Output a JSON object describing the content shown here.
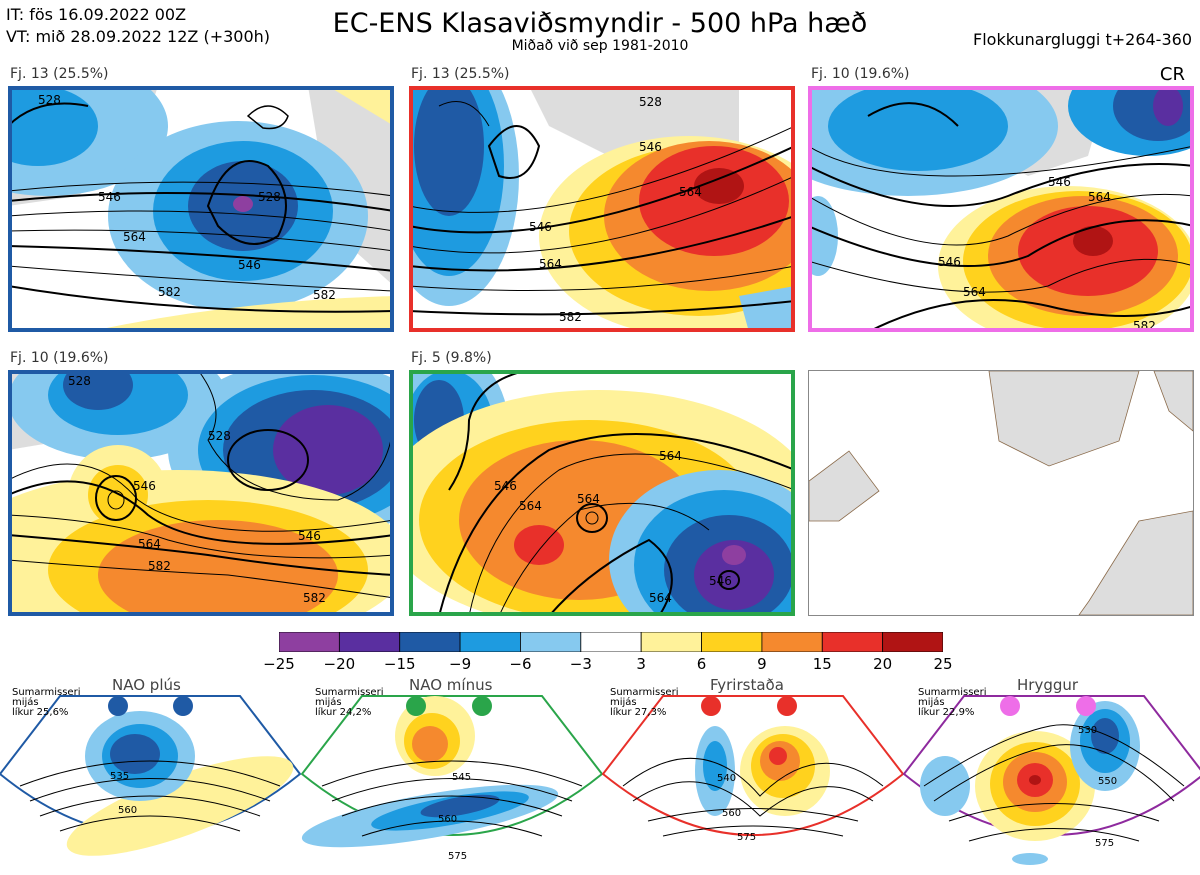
{
  "header": {
    "it_line": "IT: fös 16.09.2022 00Z",
    "vt_line": "VT: mið 28.09.2022 12Z  (+300h)",
    "title": "EC-ENS Klasaviðsmyndir - 500 hPa hæð",
    "subtitle": "Miðað við sep 1981-2010",
    "window": "Flokkunargluggi t+264-360",
    "cr": "CR"
  },
  "panels": [
    {
      "label": "Fj. 13 (25.5%)",
      "frame": "#1f5aa5",
      "contours": [
        "528",
        "528",
        "546",
        "564",
        "546",
        "582",
        "582"
      ]
    },
    {
      "label": "Fj. 13 (25.5%)",
      "frame": "#e8302a",
      "contours": [
        "528",
        "546",
        "546",
        "564",
        "564",
        "582"
      ]
    },
    {
      "label": "Fj. 10 (19.6%)",
      "frame": "#ee6ee8",
      "contours": [
        "546",
        "546",
        "564",
        "564",
        "582"
      ]
    },
    {
      "label": "Fj. 10 (19.6%)",
      "frame": "#1f5aa5",
      "contours": [
        "528",
        "528",
        "546",
        "546",
        "564",
        "582",
        "582"
      ]
    },
    {
      "label": "Fj. 5 (9.8%)",
      "frame": "#2aa54a",
      "contours": [
        "564",
        "546",
        "564",
        "564",
        "546",
        "564"
      ]
    }
  ],
  "colorbar": {
    "ticks": [
      "−25",
      "−20",
      "−15",
      "−9",
      "−6",
      "−3",
      "3",
      "6",
      "9",
      "15",
      "20",
      "25"
    ],
    "colors": [
      "#8e3fa0",
      "#5a2fa0",
      "#1f5aa5",
      "#1e9be0",
      "#86c9ef",
      "#ffffff",
      "#fff29a",
      "#ffd21e",
      "#f5892e",
      "#e8302a",
      "#b01414"
    ]
  },
  "regimes": [
    {
      "title": "NAO plús",
      "note": [
        "Sumarmisseri",
        "mijás",
        "líkur 25,6%"
      ],
      "color": "#1f5aa5",
      "contours": [
        "535",
        "560"
      ]
    },
    {
      "title": "NAO mínus",
      "note": [
        "Sumarmisseri",
        "mijás",
        "líkur 24,2%"
      ],
      "color": "#2aa54a",
      "contours": [
        "545",
        "560",
        "575"
      ]
    },
    {
      "title": "Fyrirstaða",
      "note": [
        "Sumarmisseri",
        "mijás",
        "líkur 27,3%"
      ],
      "color": "#e8302a",
      "contours": [
        "540",
        "560",
        "575"
      ]
    },
    {
      "title": "Hryggur",
      "note": [
        "Sumarmisseri",
        "mijás",
        "líkur 22,9%"
      ],
      "color": "#ee6ee8",
      "contours": [
        "530",
        "550",
        "575"
      ]
    }
  ],
  "chart_data": {
    "type": "heatmap",
    "title": "EC-ENS Klasaviðsmyndir - 500 hPa hæð",
    "colorbar_levels": [
      -25,
      -20,
      -15,
      -9,
      -6,
      -3,
      3,
      6,
      9,
      15,
      20,
      25
    ],
    "clusters": [
      {
        "name": "Fj. 13",
        "share_pct": 25.5
      },
      {
        "name": "Fj. 13",
        "share_pct": 25.5
      },
      {
        "name": "Fj. 10",
        "share_pct": 19.6
      },
      {
        "name": "Fj. 10",
        "share_pct": 19.6
      },
      {
        "name": "Fj. 5",
        "share_pct": 9.8
      }
    ],
    "regime_probability_pct": [
      {
        "name": "NAO plús",
        "value": 25.6
      },
      {
        "name": "NAO mínus",
        "value": 24.2
      },
      {
        "name": "Fyrirstaða",
        "value": 27.3
      },
      {
        "name": "Hryggur",
        "value": 22.9
      }
    ]
  }
}
